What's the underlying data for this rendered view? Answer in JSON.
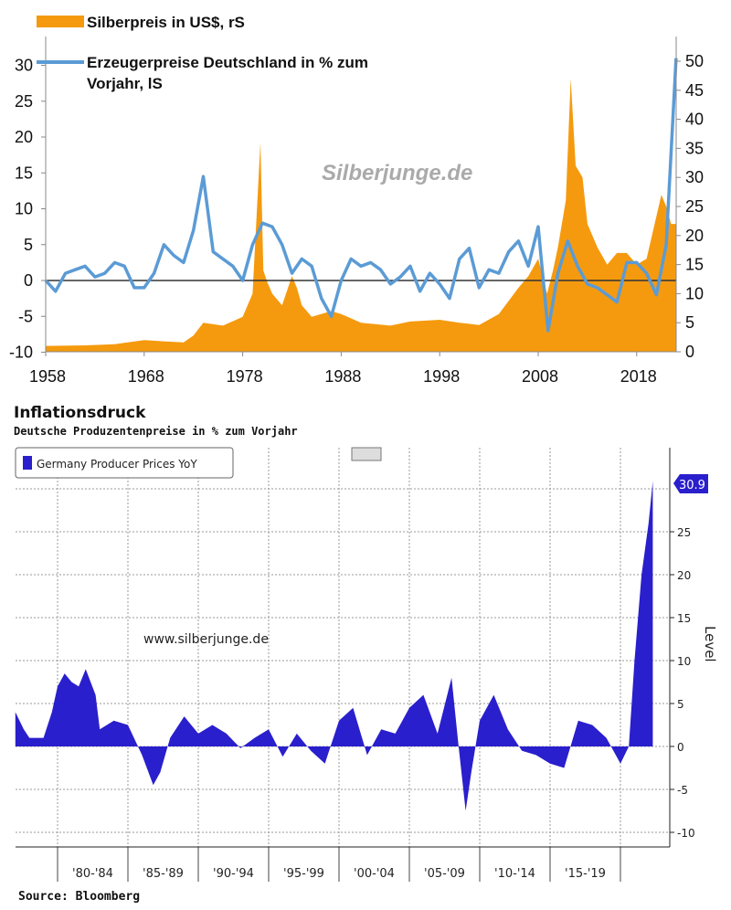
{
  "chart_data": [
    {
      "type": "line+area",
      "legend": [
        "Silberpreis in US$, rS",
        "Erzeugerpreise Deutschland in % zum Vorjahr, lS"
      ],
      "legend_lines": [
        "Silberpreis in US$, rS",
        "Erzeugerpreise Deutschland in % zum",
        "Vorjahr, lS"
      ],
      "legend_placement": "top-left",
      "watermark": "Silberjunge.de",
      "x_ticks": [
        "1958",
        "1968",
        "1978",
        "1988",
        "1998",
        "2008",
        "2018"
      ],
      "xlim": [
        1958,
        2022
      ],
      "y_left_ticks": [
        "30",
        "25",
        "20",
        "15",
        "10",
        "5",
        "0",
        "-5",
        "-10"
      ],
      "ylim_left": [
        -10,
        33
      ],
      "y_right_ticks": [
        "50",
        "45",
        "40",
        "35",
        "30",
        "25",
        "20",
        "15",
        "10",
        "5",
        "0"
      ],
      "ylim_right": [
        0,
        53
      ],
      "grid": false,
      "colors": {
        "silver": "#f59a0e",
        "ppi": "#5b9bd5"
      },
      "series": [
        {
          "name": "Silberpreis in US$, rS",
          "axis": "right",
          "kind": "area",
          "x": [
            1958,
            1962,
            1965,
            1968,
            1969,
            1970,
            1972,
            1973,
            1974,
            1976,
            1978,
            1979,
            1979.8,
            1980.1,
            1980.5,
            1981,
            1982,
            1983,
            1983.5,
            1984,
            1985,
            1987,
            1988,
            1990,
            1993,
            1995,
            1998,
            2000,
            2002,
            2004,
            2006,
            2007,
            2008,
            2008.9,
            2009.5,
            2010,
            2010.8,
            2011.3,
            2011.8,
            2012.5,
            2013,
            2014,
            2015,
            2016,
            2017,
            2018,
            2019,
            2020.5,
            2021,
            2021.5,
            2022
          ],
          "y": [
            1,
            1.1,
            1.3,
            2,
            1.9,
            1.8,
            1.6,
            2.8,
            5,
            4.5,
            6,
            10,
            36,
            14,
            12,
            10,
            8,
            13,
            11,
            8,
            6,
            7,
            6.5,
            5,
            4.5,
            5.2,
            5.5,
            5,
            4.6,
            6.5,
            11,
            13,
            16,
            10,
            14,
            18,
            26,
            47,
            32,
            30,
            22,
            18,
            15,
            17,
            17,
            15,
            16,
            27,
            25,
            22,
            22
          ]
        },
        {
          "name": "Erzeugerpreise Deutschland in % zum Vorjahr, lS",
          "axis": "left",
          "kind": "line",
          "x": [
            1958,
            1959,
            1960,
            1961,
            1962,
            1963,
            1964,
            1965,
            1966,
            1967,
            1968,
            1969,
            1970,
            1971,
            1972,
            1973,
            1974,
            1975,
            1976,
            1977,
            1978,
            1979,
            1980,
            1981,
            1982,
            1983,
            1984,
            1985,
            1986,
            1987,
            1988,
            1989,
            1990,
            1991,
            1992,
            1993,
            1994,
            1995,
            1996,
            1997,
            1998,
            1999,
            2000,
            2001,
            2002,
            2003,
            2004,
            2005,
            2006,
            2007,
            2008,
            2009,
            2010,
            2011,
            2012,
            2013,
            2014,
            2015,
            2016,
            2017,
            2018,
            2019,
            2020,
            2021,
            2022
          ],
          "y": [
            0,
            -1.5,
            1,
            1.5,
            2,
            0.5,
            1,
            2.5,
            2,
            -1,
            -1,
            1,
            5,
            3.5,
            2.5,
            7,
            14.5,
            4,
            3,
            2,
            0,
            5,
            8,
            7.5,
            5,
            1,
            3,
            2,
            -2.5,
            -5,
            0,
            3,
            2,
            2.5,
            1.5,
            -0.5,
            0.5,
            2,
            -1.5,
            1,
            -0.5,
            -2.5,
            3,
            4.5,
            -1,
            1.5,
            1,
            4,
            5.5,
            2,
            7.5,
            -7,
            1,
            5.5,
            2,
            -0.5,
            -1,
            -2,
            -3,
            2.5,
            2.5,
            1,
            -2,
            5,
            31
          ]
        }
      ]
    },
    {
      "type": "area",
      "title": "Inflationsdruck",
      "subtitle": "Deutsche Produzentenpreise in % zum Vorjahr",
      "legend": [
        "Germany Producer Prices YoY"
      ],
      "legend_placement": "top-left",
      "ylabel": "Level",
      "last_value_label": "30.9",
      "watermark": "www.silberjunge.de",
      "source": "Source:  Bloomberg",
      "x_ticks": [
        "'80-'84",
        "'85-'89",
        "'90-'94",
        "'95-'99",
        "'00-'04",
        "'05-'09",
        "'10-'14",
        "'15-'19"
      ],
      "y_ticks": [
        "25",
        "20",
        "15",
        "10",
        "5",
        "0",
        "-5",
        "-10"
      ],
      "ylim": [
        -11.5,
        34
      ],
      "xlim": [
        1977,
        2023.4
      ],
      "grid": true,
      "colors": {
        "series": "#2a1fcc"
      },
      "series": [
        {
          "name": "Germany Producer Prices YoY",
          "x": [
            1977,
            1977.6,
            1978,
            1979,
            1979.6,
            1980,
            1980.5,
            1981,
            1981.5,
            1982,
            1982.7,
            1983,
            1984,
            1985,
            1986,
            1986.8,
            1987.3,
            1988,
            1989,
            1990,
            1991,
            1992,
            1993,
            1994,
            1995,
            1996,
            1997,
            1998,
            1999,
            2000,
            2001,
            2002,
            2003,
            2004,
            2005,
            2006,
            2007,
            2008,
            2008.5,
            2009,
            2009.4,
            2010,
            2011,
            2012,
            2013,
            2014,
            2015,
            2016,
            2017,
            2018,
            2019,
            2020,
            2020.6,
            2021,
            2021.5,
            2022,
            2022.3
          ],
          "y": [
            4,
            2,
            1,
            1,
            4,
            7,
            8.5,
            7.5,
            7,
            9,
            6,
            2,
            3,
            2.5,
            -1,
            -4.5,
            -3,
            1,
            3.5,
            1.5,
            2.5,
            1.5,
            -0.2,
            1,
            2,
            -1.2,
            1.5,
            -0.5,
            -2,
            3,
            4.5,
            -1,
            2,
            1.5,
            4.5,
            6,
            1.5,
            8,
            0,
            -7.5,
            -3,
            3,
            6,
            2,
            -0.5,
            -1,
            -2,
            -2.5,
            3,
            2.5,
            1,
            -2,
            0,
            10,
            20,
            26,
            30.9
          ]
        }
      ]
    }
  ]
}
